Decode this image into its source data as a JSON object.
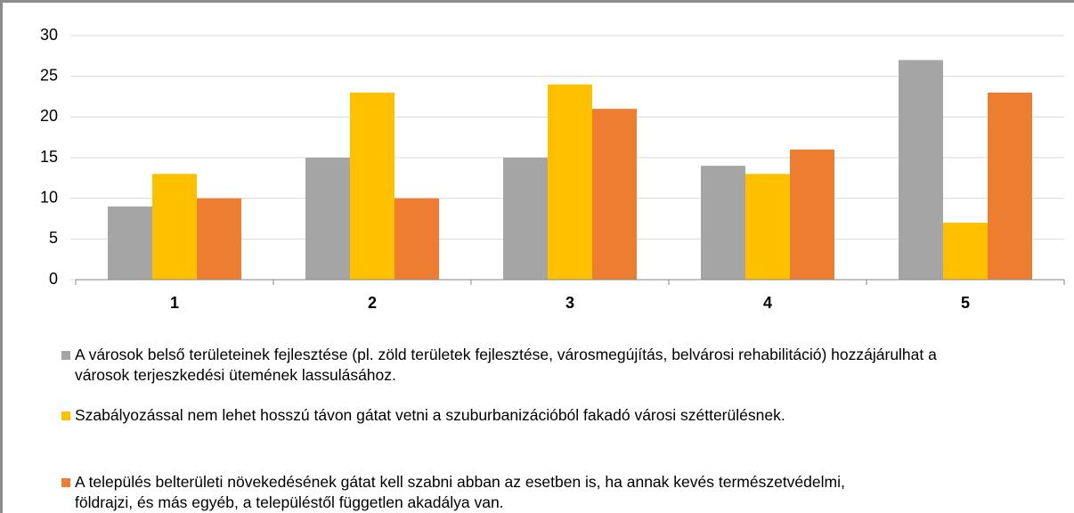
{
  "chart_data": {
    "type": "bar",
    "categories": [
      "1",
      "2",
      "3",
      "4",
      "5"
    ],
    "series": [
      {
        "name": "A városok belső területeinek fejlesztése (pl. zöld területek fejlesztése, városmegújítás, belvárosi rehabilitáció) hozzájárulhat a városok terjeszkedési ütemének lassulásához.",
        "color": "#a5a5a5",
        "values": [
          9,
          15,
          15,
          14,
          27
        ]
      },
      {
        "name": "Szabályozással nem lehet hosszú távon gátat vetni a szuburbanizációból fakadó városi szétterülésnek.",
        "color": "#ffc000",
        "values": [
          13,
          23,
          24,
          13,
          7
        ]
      },
      {
        "name": "A település belterületi növekedésének gátat kell szabni abban az esetben is, ha annak kevés természetvédelmi, földrajzi, és más egyéb, a településtől független akadálya van.",
        "color": "#ed7d31",
        "values": [
          10,
          10,
          21,
          16,
          23
        ]
      }
    ],
    "ylim": [
      0,
      30
    ],
    "yticks": [
      0,
      5,
      10,
      15,
      20,
      25,
      30
    ],
    "grid": true
  }
}
